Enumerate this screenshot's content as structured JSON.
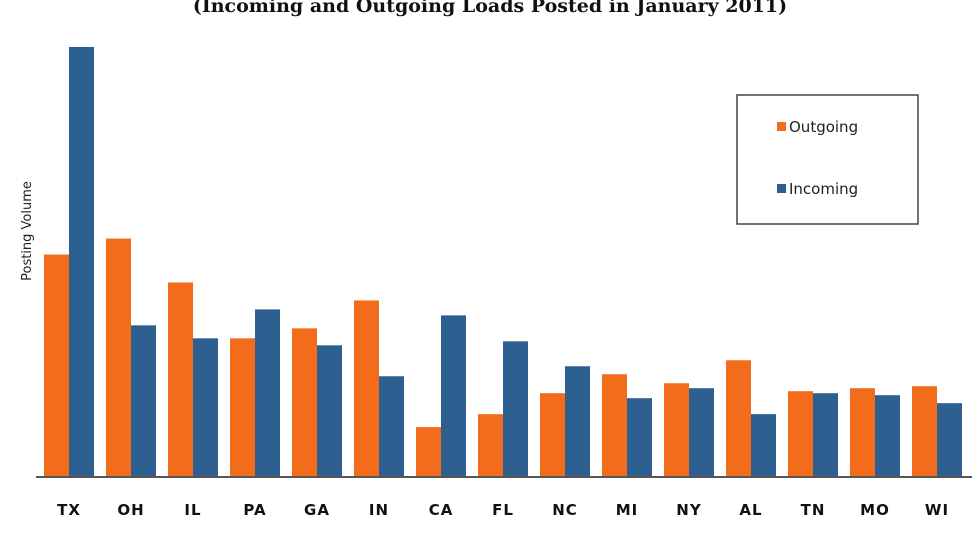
{
  "chart_data": {
    "type": "bar",
    "title": "(Incoming and Outgoing Loads Posted in  January 2011)",
    "xlabel": "",
    "ylabel": "Posting Volume",
    "categories": [
      "TX",
      "OH",
      "IL",
      "PA",
      "GA",
      "IN",
      "CA",
      "FL",
      "NC",
      "MI",
      "NY",
      "AL",
      "TN",
      "MO",
      "WI"
    ],
    "series": [
      {
        "name": "Outgoing",
        "color": "#f26c1c",
        "values": [
          222,
          238,
          194,
          138,
          148,
          176,
          49,
          62,
          83,
          102,
          93,
          116,
          85,
          88,
          90
        ]
      },
      {
        "name": "Incoming",
        "color": "#2e5f91",
        "values": [
          430,
          151,
          138,
          167,
          131,
          100,
          161,
          135,
          110,
          78,
          88,
          62,
          83,
          81,
          73
        ]
      }
    ],
    "ylim": [
      0,
      430
    ],
    "grid": false,
    "legend_position": "top-right"
  }
}
